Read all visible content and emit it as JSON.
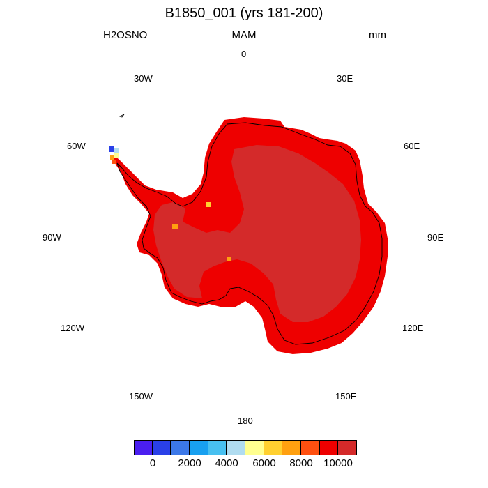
{
  "title": "B1850_001 (yrs 181-200)",
  "left_label": "H2OSNO",
  "center_label": "MAM",
  "right_label": "mm",
  "longitude_labels": [
    "0",
    "30E",
    "60E",
    "90E",
    "120E",
    "150E",
    "180",
    "150W",
    "120W",
    "90W",
    "60W",
    "30W"
  ],
  "projection": "south-polar-stereographic",
  "colorbar": {
    "colors": [
      "#4a1ef0",
      "#2a40e8",
      "#3c78e8",
      "#18a0f0",
      "#48c0f0",
      "#b0dcf0",
      "#ffff90",
      "#ffd030",
      "#ffa010",
      "#ff5010",
      "#ee0000",
      "#d42a2a"
    ],
    "tick_labels": [
      "0",
      "2000",
      "4000",
      "6000",
      "8000",
      "10000"
    ]
  },
  "colors": {
    "coastal_snow": "#ee0000",
    "interior_snow": "#d42a2a",
    "coastline": "#000000"
  }
}
